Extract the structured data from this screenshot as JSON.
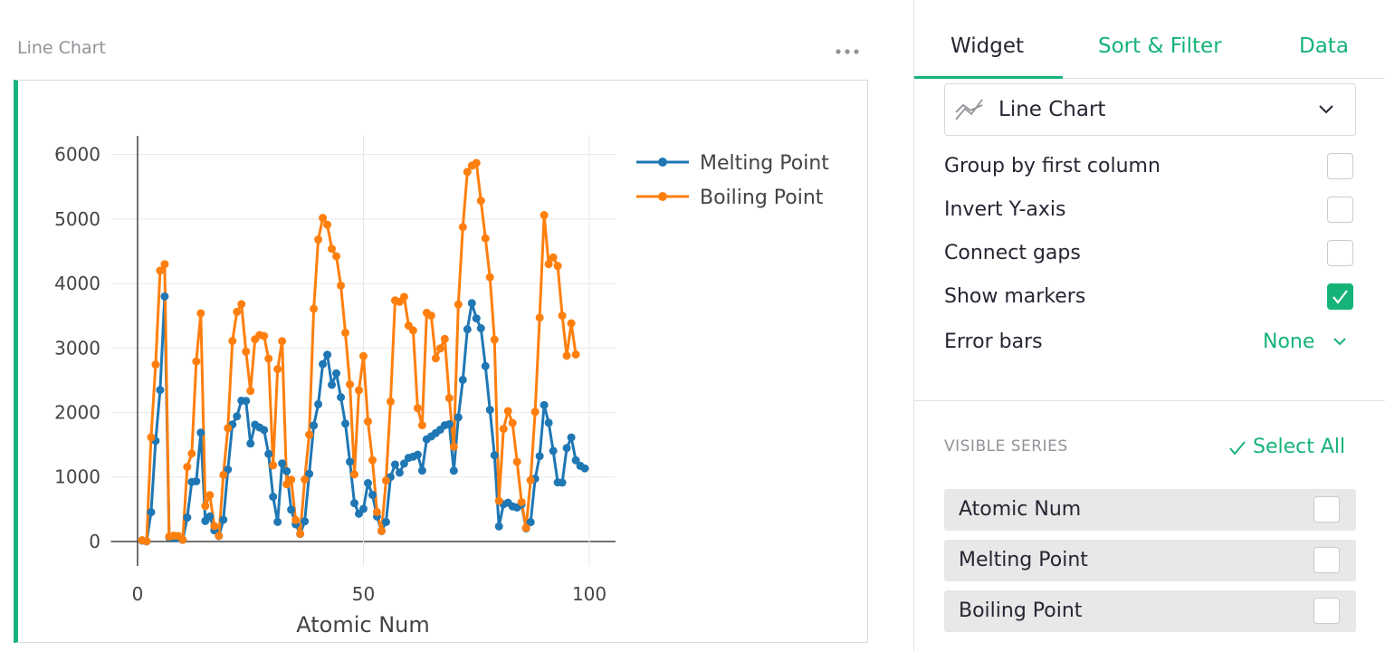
{
  "page": {
    "section_title": "Line Chart",
    "tabs": [
      "Widget",
      "Sort & Filter",
      "Data"
    ],
    "widget_type": "Line Chart",
    "options": [
      {
        "label": "Group by first column",
        "checked": false
      },
      {
        "label": "Invert Y-axis",
        "checked": false
      },
      {
        "label": "Connect gaps",
        "checked": false
      },
      {
        "label": "Show markers",
        "checked": true
      }
    ],
    "error_bars": {
      "label": "Error bars",
      "value": "None"
    },
    "visible_series": {
      "title": "VISIBLE SERIES",
      "action": "Select All",
      "items": [
        {
          "label": "Atomic Num",
          "checked": false
        },
        {
          "label": "Melting Point",
          "checked": false
        },
        {
          "label": "Boiling Point",
          "checked": false
        }
      ]
    }
  },
  "chart_data": {
    "type": "line",
    "xlabel": "Atomic Num",
    "x": [
      1,
      2,
      3,
      4,
      5,
      6,
      7,
      8,
      9,
      10,
      11,
      12,
      13,
      14,
      15,
      16,
      17,
      18,
      19,
      20,
      21,
      22,
      23,
      24,
      25,
      26,
      27,
      28,
      29,
      30,
      31,
      32,
      33,
      34,
      35,
      36,
      37,
      38,
      39,
      40,
      41,
      42,
      43,
      44,
      45,
      46,
      47,
      48,
      49,
      50,
      51,
      52,
      53,
      54,
      55,
      56,
      57,
      58,
      59,
      60,
      61,
      62,
      63,
      64,
      65,
      66,
      67,
      68,
      69,
      70,
      71,
      72,
      73,
      74,
      75,
      76,
      77,
      78,
      79,
      80,
      81,
      82,
      83,
      84,
      85,
      86,
      87,
      88,
      89,
      90,
      91,
      92,
      93,
      94,
      95,
      96,
      97,
      98,
      99
    ],
    "series": [
      {
        "name": "Melting Point",
        "color": "#1f77b4",
        "values": [
          14,
          1,
          454,
          1560,
          2349,
          3800,
          63,
          54,
          53,
          25,
          371,
          923,
          933,
          1687,
          317,
          388,
          172,
          84,
          337,
          1115,
          1814,
          1941,
          2183,
          2180,
          1519,
          1811,
          1768,
          1728,
          1358,
          693,
          303,
          1211,
          1090,
          494,
          266,
          116,
          312,
          1050,
          1799,
          2128,
          2750,
          2896,
          2430,
          2607,
          2237,
          1828,
          1235,
          594,
          430,
          505,
          904,
          723,
          387,
          161,
          302,
          1000,
          1193,
          1068,
          1208,
          1297,
          1315,
          1345,
          1099,
          1585,
          1629,
          1680,
          1734,
          1802,
          1818,
          1097,
          1925,
          2506,
          3290,
          3695,
          3459,
          3306,
          2719,
          2041,
          1337,
          234,
          577,
          601,
          544,
          527,
          575,
          202,
          300,
          973,
          1323,
          2115,
          1841,
          1405,
          917,
          913,
          1449,
          1613,
          1259,
          1173,
          1133
        ]
      },
      {
        "name": "Boiling Point",
        "color": "#ff7f0e",
        "values": [
          20,
          4,
          1615,
          2744,
          4200,
          4300,
          77,
          90,
          85,
          27,
          1156,
          1363,
          2792,
          3538,
          550,
          718,
          239,
          87,
          1032,
          1757,
          3109,
          3560,
          3680,
          2944,
          2334,
          3134,
          3200,
          3186,
          2835,
          1180,
          2673,
          3106,
          887,
          958,
          332,
          120,
          961,
          1655,
          3609,
          4682,
          5017,
          4912,
          4538,
          4423,
          3968,
          3236,
          2435,
          1040,
          2345,
          2875,
          1860,
          1261,
          457,
          165,
          944,
          2170,
          3737,
          3716,
          3793,
          3347,
          3273,
          2067,
          1802,
          3546,
          3503,
          2840,
          2993,
          3141,
          2223,
          1469,
          3675,
          4876,
          5731,
          5828,
          5869,
          5285,
          4701,
          4098,
          3129,
          630,
          1746,
          2022,
          1837,
          1235,
          610,
          211,
          950,
          2010,
          3471,
          5061,
          4300,
          4404,
          4273,
          3501,
          2880,
          3383,
          2900,
          null,
          null
        ]
      }
    ],
    "xlim": [
      -5.9,
      105.8
    ],
    "ylim": [
      -380,
      6290
    ],
    "xticks": [
      0,
      50,
      100
    ],
    "yticks": [
      0,
      1000,
      2000,
      3000,
      4000,
      5000,
      6000
    ],
    "grid": true,
    "markers": true,
    "legend": "right"
  }
}
